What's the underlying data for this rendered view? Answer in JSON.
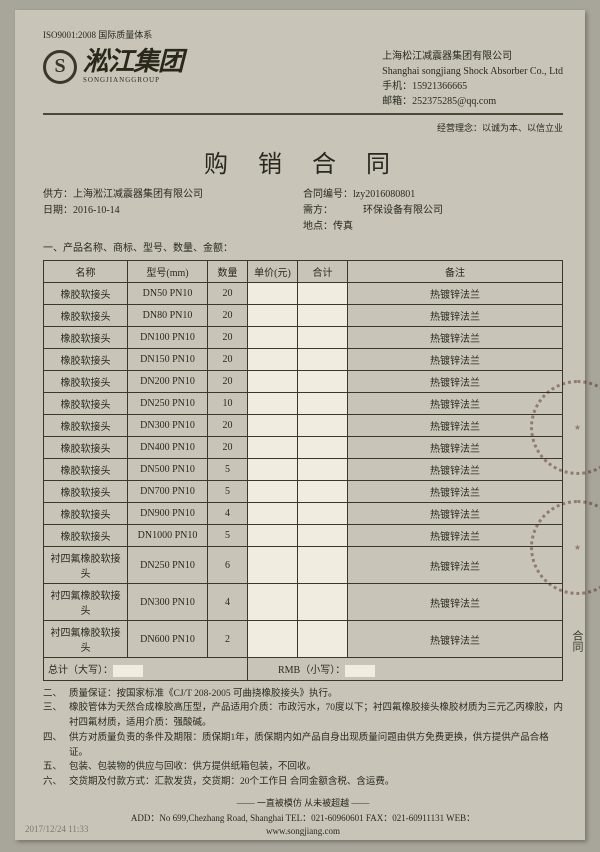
{
  "iso": "ISO9001:2008 国际质量体系",
  "logo": {
    "symbol": "S",
    "cn": "淞江集团",
    "en": "SONGJIANGGROUP"
  },
  "company": {
    "name_cn": "上海松江减震器集团有限公司",
    "name_en": "Shanghai songjiang Shock Absorber Co., Ltd",
    "phone_label": "手机：",
    "phone": "15921366665",
    "email_label": "邮箱：",
    "email": "252375285@qq.com"
  },
  "tagline": "经营理念：以诚为本、以信立业",
  "title": "购 销 合 同",
  "meta": {
    "supplier_label": "供方：",
    "supplier": "上海淞江减震器集团有限公司",
    "date_label": "日期：",
    "date": "2016-10-14",
    "contract_no_label": "合同编号：",
    "contract_no": "lzy2016080801",
    "buyer_label": "需方：",
    "buyer": "环保设备有限公司",
    "place_label": "地点：",
    "place": "传真"
  },
  "section1": "一、产品名称、商标、型号、数量、金额：",
  "table": {
    "headers": [
      "名称",
      "型号(mm)",
      "数量",
      "单价(元)",
      "合计",
      "备注"
    ],
    "rows": [
      [
        "橡胶软接头",
        "DN50  PN10",
        "20",
        "",
        "",
        "热镀锌法兰"
      ],
      [
        "橡胶软接头",
        "DN80  PN10",
        "20",
        "",
        "",
        "热镀锌法兰"
      ],
      [
        "橡胶软接头",
        "DN100  PN10",
        "20",
        "",
        "",
        "热镀锌法兰"
      ],
      [
        "橡胶软接头",
        "DN150  PN10",
        "20",
        "",
        "",
        "热镀锌法兰"
      ],
      [
        "橡胶软接头",
        "DN200  PN10",
        "20",
        "",
        "",
        "热镀锌法兰"
      ],
      [
        "橡胶软接头",
        "DN250  PN10",
        "10",
        "",
        "",
        "热镀锌法兰"
      ],
      [
        "橡胶软接头",
        "DN300  PN10",
        "20",
        "",
        "",
        "热镀锌法兰"
      ],
      [
        "橡胶软接头",
        "DN400  PN10",
        "20",
        "",
        "",
        "热镀锌法兰"
      ],
      [
        "橡胶软接头",
        "DN500  PN10",
        "5",
        "",
        "",
        "热镀锌法兰"
      ],
      [
        "橡胶软接头",
        "DN700  PN10",
        "5",
        "",
        "",
        "热镀锌法兰"
      ],
      [
        "橡胶软接头",
        "DN900  PN10",
        "4",
        "",
        "",
        "热镀锌法兰"
      ],
      [
        "橡胶软接头",
        "DN1000  PN10",
        "5",
        "",
        "",
        "热镀锌法兰"
      ],
      [
        "衬四氟橡胶软接头",
        "DN250  PN10",
        "6",
        "",
        "",
        "热镀锌法兰"
      ],
      [
        "衬四氟橡胶软接头",
        "DN300  PN10",
        "4",
        "",
        "",
        "热镀锌法兰"
      ],
      [
        "衬四氟橡胶软接头",
        "DN600  PN10",
        "2",
        "",
        "",
        "热镀锌法兰"
      ]
    ],
    "total_left": "总计（大写）：",
    "total_right": "RMB（小写）："
  },
  "terms": [
    {
      "num": "二、",
      "text": "质量保证：按国家标准《CJ/T 208-2005 可曲挠橡胶接头》执行。"
    },
    {
      "num": "三、",
      "text": "橡胶管体为天然合成橡胶高压型，产品适用介质：市政污水，70度以下；衬四氟橡胶接头橡胶材质为三元乙丙橡胶，内衬四氟材质，适用介质：强酸碱。"
    },
    {
      "num": "四、",
      "text": "供方对质量负责的条件及期限：质保期1年，质保期内如产品自身出现质量问题由供方免费更换，供方提供产品合格证。"
    },
    {
      "num": "五、",
      "text": "包装、包装物的供应与回收：供方提供纸箱包装，不回收。"
    },
    {
      "num": "六、",
      "text": "交货期及付款方式：汇款发货，交货期：20个工作日 合同金额含税、含运费。"
    }
  ],
  "footer_sep": "—— 一直被模仿  从未被超越 ——",
  "footer_addr": "ADD：No 699,Chezhang Road, Shanghai   TEL：021-60960601  FAX：021-60911131  WEB：",
  "footer_web": "www.songjiang.com",
  "stamp_side": "合同",
  "bottom": "2017/12/24 11:33"
}
